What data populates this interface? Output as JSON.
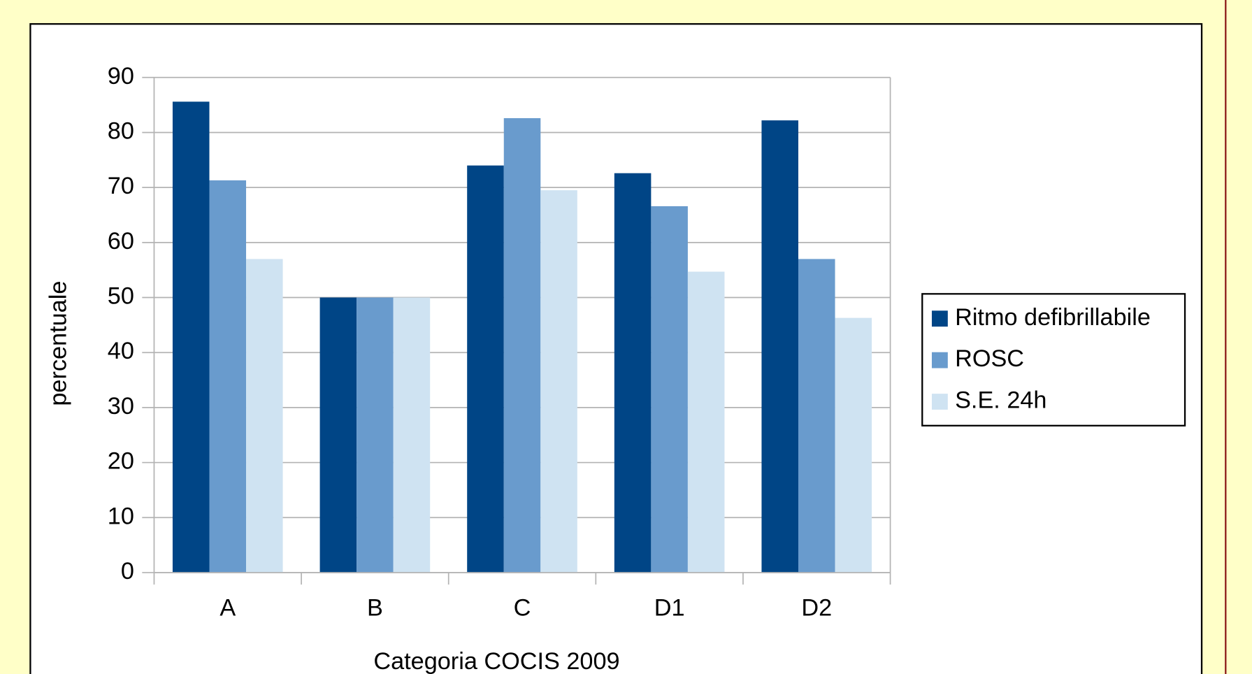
{
  "chart_data": {
    "type": "bar",
    "x_label": "Categoria COCIS 2009",
    "y_label": "percentuale",
    "categories": [
      "A",
      "B",
      "C",
      "D1",
      "D2"
    ],
    "series": [
      {
        "name": "Ritmo defibrillabile",
        "color": "#004586",
        "values": [
          85.6,
          50,
          74,
          72.6,
          82.2
        ]
      },
      {
        "name": "ROSC",
        "color": "#699bcd",
        "values": [
          71.3,
          50,
          82.6,
          66.6,
          57
        ]
      },
      {
        "name": "S.E. 24h",
        "color": "#cfe3f2",
        "values": [
          57,
          50,
          69.5,
          54.7,
          46.3
        ]
      }
    ],
    "ylim": [
      0,
      90
    ],
    "yticks": [
      0,
      10,
      20,
      30,
      40,
      50,
      60,
      70,
      80,
      90
    ],
    "grid": true,
    "legend": "right"
  }
}
